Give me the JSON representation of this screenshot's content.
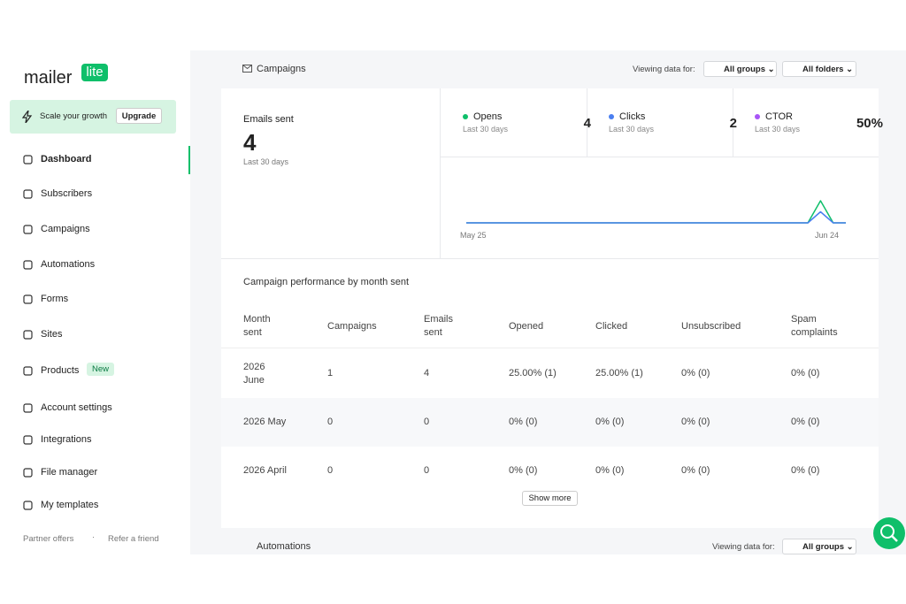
{
  "sidebar": {
    "logo": {
      "text": "mailer",
      "badge": "lite"
    },
    "promo": {
      "text": "Scale your growth",
      "button": "Upgrade"
    },
    "nav": [
      {
        "label": "Dashboard"
      },
      {
        "label": "Subscribers"
      },
      {
        "label": "Campaigns"
      },
      {
        "label": "Automations"
      },
      {
        "label": "Forms"
      },
      {
        "label": "Sites"
      },
      {
        "label": "Products",
        "badge": "New"
      },
      {
        "label": "Account settings"
      },
      {
        "label": "Integrations"
      },
      {
        "label": "File manager"
      },
      {
        "label": "My templates"
      }
    ],
    "footer": [
      "Partner offers",
      "Refer a friend"
    ]
  },
  "campaigns": {
    "title": "Campaigns",
    "viewing_label": "Viewing data for:",
    "groups": "All groups",
    "folders": "All folders",
    "emails_sent": {
      "label": "Emails sent",
      "value": 4,
      "period": "Last 30 days"
    },
    "stats": [
      {
        "name": "Opens",
        "period": "Last 30 days",
        "value": 4,
        "color": "#0fbf6a"
      },
      {
        "name": "Clicks",
        "period": "Last 30 days",
        "value": 2,
        "color": "#4a7ff0"
      },
      {
        "name": "CTOR",
        "period": "Last 30 days",
        "value": "50%",
        "color": "#a855f7"
      }
    ],
    "chart_data": {
      "type": "line",
      "categories": [
        "May 25",
        null,
        null,
        null,
        null,
        null,
        null,
        null,
        null,
        null,
        null,
        null,
        null,
        null,
        null,
        null,
        null,
        null,
        null,
        null,
        null,
        null,
        null,
        null,
        null,
        null,
        null,
        null,
        null,
        null,
        "Jun 24"
      ],
      "ylim": [
        0,
        4
      ],
      "series": [
        {
          "name": "Opens",
          "color": "#0fbf6a",
          "values": [
            0,
            0,
            0,
            0,
            0,
            0,
            0,
            0,
            0,
            0,
            0,
            0,
            0,
            0,
            0,
            0,
            0,
            0,
            0,
            0,
            0,
            0,
            0,
            0,
            0,
            0,
            0,
            0,
            4,
            0,
            0
          ]
        },
        {
          "name": "Clicks",
          "color": "#4a7ff0",
          "values": [
            0,
            0,
            0,
            0,
            0,
            0,
            0,
            0,
            0,
            0,
            0,
            0,
            0,
            0,
            0,
            0,
            0,
            0,
            0,
            0,
            0,
            0,
            0,
            0,
            0,
            0,
            0,
            0,
            2,
            0,
            0
          ]
        }
      ]
    },
    "table": {
      "title": "Campaign performance by month sent",
      "headers": [
        "Month sent",
        "Campaigns",
        "Emails sent",
        "Opened",
        "Clicked",
        "Unsubscribed",
        "Spam complaints"
      ],
      "rows": [
        [
          "2026 June",
          "1",
          "4",
          "25.00% (1)",
          "25.00% (1)",
          "0% (0)",
          "0% (0)"
        ],
        [
          "2026 May",
          "0",
          "0",
          "0% (0)",
          "0% (0)",
          "0% (0)",
          "0% (0)"
        ],
        [
          "2026 April",
          "0",
          "0",
          "0% (0)",
          "0% (0)",
          "0% (0)",
          "0% (0)"
        ]
      ]
    },
    "show_more": "Show more"
  },
  "automations": {
    "title": "Automations",
    "viewing_label": "Viewing data for:",
    "groups": "All groups"
  }
}
